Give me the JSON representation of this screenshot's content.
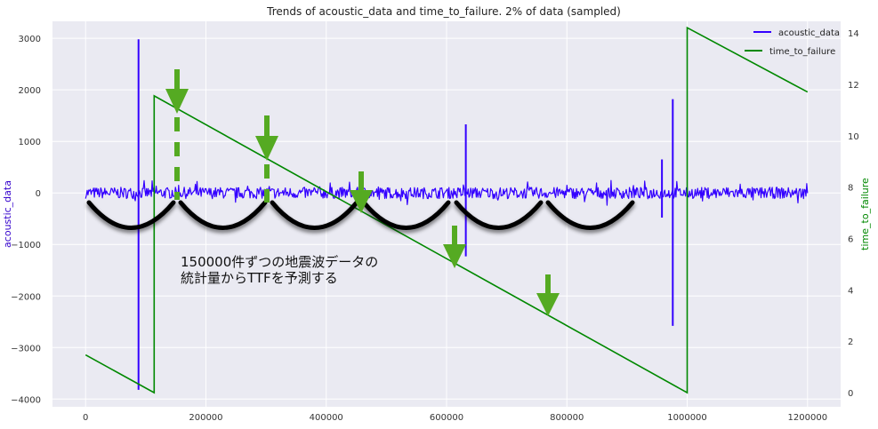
{
  "chart_data": {
    "type": "line",
    "title": "Trends of acoustic_data and time_to_failure. 2% of data (sampled)",
    "xlim": [
      -55000,
      1255000
    ],
    "xticks": [
      0,
      200000,
      400000,
      600000,
      800000,
      1000000,
      1200000
    ],
    "xtick_labels": [
      "0",
      "200000",
      "400000",
      "600000",
      "800000",
      "1000000",
      "1200000"
    ],
    "y_left": {
      "label": "acoustic_data",
      "color": "#3300cc",
      "ylim": [
        -4150,
        3330
      ],
      "ticks": [
        -4000,
        -3000,
        -2000,
        -1000,
        0,
        1000,
        2000,
        3000
      ],
      "tick_labels": [
        "−4000",
        "−3000",
        "−2000",
        "−1000",
        "0",
        "1000",
        "2000",
        "3000"
      ]
    },
    "y_right": {
      "label": "time_to_failure",
      "color": "#008800",
      "ylim": [
        -0.55,
        14.45
      ],
      "ticks": [
        0,
        2,
        4,
        6,
        8,
        10,
        12,
        14
      ],
      "tick_labels": [
        "0",
        "2",
        "4",
        "6",
        "8",
        "10",
        "12",
        "14"
      ]
    },
    "legend": {
      "placement": "top-right",
      "entries": [
        {
          "label": "acoustic_data",
          "color": "#3300ff"
        },
        {
          "label": "time_to_failure",
          "color": "#008800"
        }
      ]
    },
    "grid": true,
    "series": [
      {
        "name": "acoustic_data",
        "axis": "left",
        "color": "#3300ff",
        "noise_amplitude": 110,
        "x_end": 1200000,
        "spikes": [
          {
            "x": 88000,
            "high": 2980,
            "low": -3820
          },
          {
            "x": 632000,
            "high": 1330,
            "low": -1230
          },
          {
            "x": 958000,
            "high": 650,
            "low": -480
          },
          {
            "x": 976000,
            "high": 1820,
            "low": -2580
          }
        ]
      },
      {
        "name": "time_to_failure",
        "axis": "right",
        "color": "#008800",
        "x": [
          0,
          114000,
          114000,
          1000000,
          1000000,
          1200000
        ],
        "y": [
          1.47,
          0.0,
          11.55,
          0.0,
          14.2,
          11.7
        ]
      }
    ]
  },
  "annotation": {
    "line1": "150000件ずつの地震波データの",
    "line2": "統計量からTTFを予測する",
    "arc_color": "#000000",
    "arrow_color": "#55aa22"
  }
}
